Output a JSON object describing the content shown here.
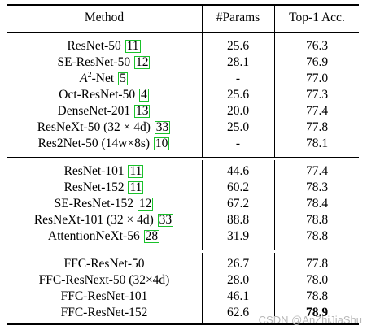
{
  "headers": [
    "Method",
    "#Params",
    "Top-1 Acc."
  ],
  "groups": [
    {
      "rows": [
        {
          "method": "ResNet-50",
          "ref": "11",
          "params": "25.6",
          "acc": "76.3"
        },
        {
          "method": "SE-ResNet-50",
          "ref": "12",
          "params": "28.1",
          "acc": "76.9"
        },
        {
          "method_pre": "A",
          "method_sup": "2",
          "method": "-Net",
          "ref": "5",
          "params": "-",
          "acc": "77.0"
        },
        {
          "method": "Oct-ResNet-50",
          "ref": "4",
          "params": "25.6",
          "acc": "77.3"
        },
        {
          "method": "DenseNet-201",
          "ref": "13",
          "params": "20.0",
          "acc": "77.4"
        },
        {
          "method": "ResNeXt-50 (32 × 4d)",
          "ref": "33",
          "params": "25.0",
          "acc": "77.8"
        },
        {
          "method": "Res2Net-50 (14w×8s)",
          "ref": "10",
          "params": "-",
          "acc": "78.1"
        }
      ]
    },
    {
      "rows": [
        {
          "method": "ResNet-101",
          "ref": "11",
          "params": "44.6",
          "acc": "77.4"
        },
        {
          "method": "ResNet-152",
          "ref": "11",
          "params": "60.2",
          "acc": "78.3"
        },
        {
          "method": "SE-ResNet-152",
          "ref": "12",
          "params": "67.2",
          "acc": "78.4"
        },
        {
          "method": "ResNeXt-101 (32 × 4d)",
          "ref": "33",
          "params": "88.8",
          "acc": "78.8"
        },
        {
          "method": "AttentionNeXt-56",
          "ref": "28",
          "params": "31.9",
          "acc": "78.8"
        }
      ]
    },
    {
      "rows": [
        {
          "method": "FFC-ResNet-50",
          "params": "26.7",
          "acc": "77.8"
        },
        {
          "method": "FFC-ResNext-50 (32×4d)",
          "params": "28.0",
          "acc": "78.0"
        },
        {
          "method": "FFC-ResNet-101",
          "params": "46.1",
          "acc": "78.8"
        },
        {
          "method": "FFC-ResNet-152",
          "params": "62.6",
          "acc": "78.9",
          "acc_bold": true
        }
      ]
    }
  ],
  "watermark": "CSDN @AnZhiJiaShu",
  "colors": {
    "ref_box": "#19c22a"
  }
}
